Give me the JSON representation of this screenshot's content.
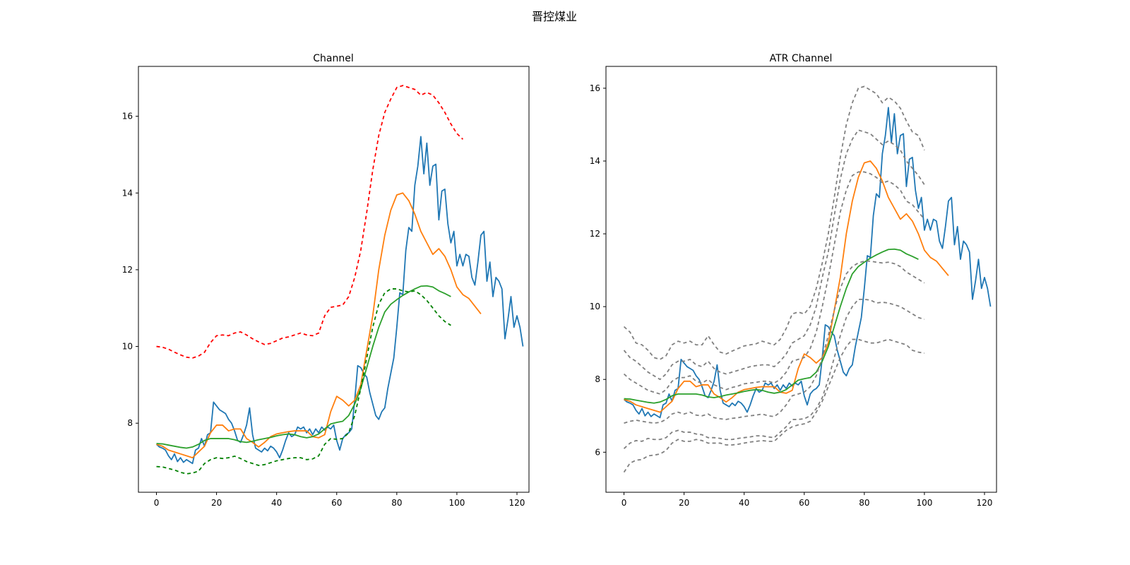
{
  "figure": {
    "suptitle": "晋控煤业"
  },
  "chart_data": [
    {
      "type": "line",
      "title": "Channel",
      "xlabel": "",
      "ylabel": "",
      "xlim": [
        -6,
        124
      ],
      "ylim": [
        6.2,
        17.3
      ],
      "xticks": [
        0,
        20,
        40,
        60,
        80,
        100,
        120
      ],
      "yticks": [
        8,
        10,
        12,
        14,
        16
      ],
      "grid": false,
      "legend": "none",
      "x_step": 2,
      "series": [
        {
          "color": "#1f77b4",
          "dash": "solid",
          "stride": 1,
          "values": [
            7.45,
            7.38,
            7.35,
            7.3,
            7.15,
            7.05,
            7.2,
            7.0,
            7.1,
            6.98,
            7.05,
            7.0,
            6.95,
            7.3,
            7.35,
            7.6,
            7.4,
            7.7,
            7.75,
            8.55,
            8.45,
            8.35,
            8.3,
            8.25,
            8.1,
            8.0,
            7.8,
            7.55,
            7.5,
            7.7,
            7.95,
            8.4,
            7.7,
            7.35,
            7.3,
            7.25,
            7.35,
            7.28,
            7.4,
            7.35,
            7.25,
            7.1,
            7.3,
            7.55,
            7.75,
            7.65,
            7.7,
            7.9,
            7.85,
            7.9,
            7.75,
            7.85,
            7.7,
            7.85,
            7.75,
            7.9,
            7.82,
            7.9,
            7.85,
            7.95,
            7.55,
            7.3,
            7.6,
            7.7,
            7.75,
            7.85,
            8.6,
            9.5,
            9.45,
            9.3,
            9.2,
            8.8,
            8.5,
            8.2,
            8.1,
            8.3,
            8.4,
            8.9,
            9.3,
            9.7,
            10.5,
            11.4,
            11.35,
            12.5,
            13.1,
            13.0,
            14.2,
            14.7,
            15.47,
            14.5,
            15.3,
            14.2,
            14.7,
            14.75,
            13.3,
            14.05,
            14.1,
            13.2,
            12.7,
            13.0,
            12.1,
            12.4,
            12.1,
            12.4,
            12.35,
            11.8,
            11.6,
            12.2,
            12.9,
            13.0,
            11.7,
            12.2,
            11.3,
            11.8,
            11.7,
            11.5,
            10.2,
            10.7,
            11.3,
            10.5,
            10.8,
            10.5,
            10.0
          ]
        },
        {
          "color": "#ff7f0e",
          "dash": "solid",
          "stride": 2,
          "values": [
            7.45,
            7.4,
            7.3,
            7.25,
            7.2,
            7.15,
            7.1,
            7.25,
            7.4,
            7.75,
            7.95,
            7.95,
            7.8,
            7.85,
            7.85,
            7.6,
            7.5,
            7.38,
            7.5,
            7.65,
            7.72,
            7.75,
            7.78,
            7.8,
            7.8,
            7.8,
            7.65,
            7.62,
            7.7,
            8.3,
            8.7,
            8.6,
            8.45,
            8.6,
            9.0,
            9.9,
            10.8,
            12.0,
            12.9,
            13.55,
            13.95,
            14.0,
            13.8,
            13.45,
            13.0,
            12.7,
            12.4,
            12.55,
            12.35,
            12.0,
            11.55,
            11.35,
            11.25,
            11.05,
            10.85
          ]
        },
        {
          "color": "#2ca02c",
          "dash": "solid",
          "stride": 2,
          "values": [
            7.47,
            7.46,
            7.43,
            7.4,
            7.37,
            7.35,
            7.38,
            7.45,
            7.55,
            7.6,
            7.6,
            7.6,
            7.6,
            7.57,
            7.52,
            7.5,
            7.53,
            7.57,
            7.6,
            7.63,
            7.67,
            7.7,
            7.72,
            7.7,
            7.65,
            7.62,
            7.65,
            7.72,
            7.85,
            7.98,
            8.02,
            8.05,
            8.2,
            8.5,
            8.9,
            9.45,
            10.0,
            10.5,
            10.9,
            11.1,
            11.22,
            11.33,
            11.42,
            11.5,
            11.57,
            11.58,
            11.55,
            11.45,
            11.38,
            11.3
          ]
        },
        {
          "color": "#ff0000",
          "dash": "5,4",
          "stride": 2,
          "values": [
            10.0,
            9.98,
            9.93,
            9.85,
            9.78,
            9.72,
            9.7,
            9.75,
            9.85,
            10.1,
            10.28,
            10.3,
            10.28,
            10.35,
            10.38,
            10.3,
            10.2,
            10.12,
            10.05,
            10.08,
            10.15,
            10.22,
            10.25,
            10.3,
            10.35,
            10.3,
            10.28,
            10.35,
            10.8,
            11.02,
            11.05,
            11.08,
            11.3,
            11.8,
            12.5,
            13.5,
            14.6,
            15.5,
            16.1,
            16.45,
            16.75,
            16.8,
            16.75,
            16.7,
            16.55,
            16.62,
            16.55,
            16.35,
            16.1,
            15.8,
            15.55,
            15.4
          ]
        },
        {
          "color": "#008000",
          "dash": "5,4",
          "stride": 2,
          "values": [
            6.87,
            6.86,
            6.82,
            6.78,
            6.72,
            6.68,
            6.7,
            6.75,
            6.95,
            7.05,
            7.1,
            7.08,
            7.1,
            7.14,
            7.08,
            7.0,
            6.95,
            6.9,
            6.92,
            6.97,
            7.02,
            7.05,
            7.08,
            7.1,
            7.1,
            7.05,
            7.07,
            7.15,
            7.45,
            7.6,
            7.58,
            7.6,
            7.75,
            8.2,
            8.9,
            9.7,
            10.5,
            11.1,
            11.4,
            11.5,
            11.5,
            11.45,
            11.42,
            11.45,
            11.35,
            11.2,
            11.0,
            10.8,
            10.65,
            10.55
          ]
        }
      ]
    },
    {
      "type": "line",
      "title": "ATR Channel",
      "xlabel": "",
      "ylabel": "",
      "xlim": [
        -6,
        124
      ],
      "ylim": [
        4.9,
        16.6
      ],
      "xticks": [
        0,
        20,
        40,
        60,
        80,
        100,
        120
      ],
      "yticks": [
        6,
        8,
        10,
        12,
        14,
        16
      ],
      "grid": false,
      "legend": "none",
      "x_step": 2,
      "series": [
        {
          "color": "#1f77b4",
          "dash": "solid",
          "stride": 1,
          "values": [
            7.45,
            7.38,
            7.35,
            7.3,
            7.15,
            7.05,
            7.2,
            7.0,
            7.1,
            6.98,
            7.05,
            7.0,
            6.95,
            7.3,
            7.35,
            7.6,
            7.4,
            7.7,
            7.75,
            8.55,
            8.45,
            8.35,
            8.3,
            8.25,
            8.1,
            8.0,
            7.8,
            7.55,
            7.5,
            7.7,
            7.95,
            8.4,
            7.7,
            7.35,
            7.3,
            7.25,
            7.35,
            7.28,
            7.4,
            7.35,
            7.25,
            7.1,
            7.3,
            7.55,
            7.75,
            7.65,
            7.7,
            7.9,
            7.85,
            7.9,
            7.75,
            7.85,
            7.7,
            7.85,
            7.75,
            7.9,
            7.82,
            7.9,
            7.85,
            7.95,
            7.55,
            7.3,
            7.6,
            7.7,
            7.75,
            7.85,
            8.6,
            9.5,
            9.45,
            9.3,
            9.2,
            8.8,
            8.5,
            8.2,
            8.1,
            8.3,
            8.4,
            8.9,
            9.3,
            9.7,
            10.5,
            11.4,
            11.35,
            12.5,
            13.1,
            13.0,
            14.2,
            14.7,
            15.47,
            14.5,
            15.3,
            14.2,
            14.7,
            14.75,
            13.3,
            14.05,
            14.1,
            13.2,
            12.7,
            13.0,
            12.1,
            12.4,
            12.1,
            12.4,
            12.35,
            11.8,
            11.6,
            12.2,
            12.9,
            13.0,
            11.7,
            12.2,
            11.3,
            11.8,
            11.7,
            11.5,
            10.2,
            10.7,
            11.3,
            10.5,
            10.8,
            10.5,
            10.0
          ]
        },
        {
          "color": "#ff7f0e",
          "dash": "solid",
          "stride": 2,
          "values": [
            7.45,
            7.4,
            7.3,
            7.25,
            7.2,
            7.15,
            7.1,
            7.25,
            7.4,
            7.75,
            7.95,
            7.95,
            7.8,
            7.85,
            7.85,
            7.6,
            7.5,
            7.38,
            7.5,
            7.65,
            7.72,
            7.75,
            7.78,
            7.8,
            7.8,
            7.8,
            7.65,
            7.62,
            7.7,
            8.3,
            8.7,
            8.6,
            8.45,
            8.6,
            9.0,
            9.9,
            10.8,
            12.0,
            12.9,
            13.55,
            13.95,
            14.0,
            13.8,
            13.45,
            13.0,
            12.7,
            12.4,
            12.55,
            12.35,
            12.0,
            11.55,
            11.35,
            11.25,
            11.05,
            10.85
          ]
        },
        {
          "color": "#2ca02c",
          "dash": "solid",
          "stride": 2,
          "values": [
            7.47,
            7.46,
            7.43,
            7.4,
            7.37,
            7.35,
            7.38,
            7.45,
            7.55,
            7.6,
            7.6,
            7.6,
            7.6,
            7.57,
            7.52,
            7.5,
            7.53,
            7.57,
            7.6,
            7.63,
            7.67,
            7.7,
            7.72,
            7.7,
            7.65,
            7.62,
            7.65,
            7.72,
            7.85,
            7.98,
            8.02,
            8.05,
            8.2,
            8.5,
            8.9,
            9.45,
            10.0,
            10.5,
            10.9,
            11.1,
            11.22,
            11.33,
            11.42,
            11.5,
            11.57,
            11.58,
            11.55,
            11.45,
            11.38,
            11.3
          ]
        },
        {
          "color": "#808080",
          "dash": "5,4",
          "stride": 2,
          "values": [
            9.45,
            9.3,
            9.0,
            8.95,
            8.8,
            8.6,
            8.55,
            8.65,
            8.95,
            9.05,
            9.0,
            9.05,
            8.95,
            8.95,
            9.2,
            8.95,
            8.75,
            8.7,
            8.78,
            8.85,
            8.92,
            8.95,
            8.98,
            9.05,
            9.0,
            8.95,
            9.1,
            9.4,
            9.8,
            9.85,
            9.8,
            10.0,
            10.5,
            11.2,
            12.0,
            13.0,
            14.1,
            15.0,
            15.6,
            16.0,
            16.05,
            15.95,
            15.85,
            15.6,
            15.75,
            15.65,
            15.45,
            15.1,
            14.8,
            14.7,
            14.3
          ]
        },
        {
          "color": "#808080",
          "dash": "5,4",
          "stride": 2,
          "values": [
            8.8,
            8.6,
            8.5,
            8.35,
            8.2,
            8.1,
            8.0,
            8.15,
            8.4,
            8.5,
            8.5,
            8.55,
            8.4,
            8.35,
            8.5,
            8.3,
            8.2,
            8.15,
            8.2,
            8.25,
            8.3,
            8.35,
            8.38,
            8.4,
            8.4,
            8.35,
            8.5,
            8.7,
            9.0,
            9.1,
            9.2,
            9.5,
            10.0,
            10.8,
            11.5,
            12.5,
            13.5,
            14.2,
            14.6,
            14.85,
            14.8,
            14.75,
            14.6,
            14.45,
            14.55,
            14.45,
            14.3,
            14.0,
            13.8,
            13.6,
            13.35
          ]
        },
        {
          "color": "#808080",
          "dash": "5,4",
          "stride": 2,
          "values": [
            8.15,
            8.0,
            7.9,
            7.8,
            7.7,
            7.65,
            7.6,
            7.72,
            7.95,
            8.05,
            8.05,
            8.1,
            7.95,
            7.9,
            8.0,
            7.85,
            7.78,
            7.72,
            7.78,
            7.82,
            7.88,
            7.9,
            7.92,
            7.95,
            7.95,
            7.9,
            8.0,
            8.2,
            8.5,
            8.55,
            8.6,
            8.85,
            9.3,
            10.0,
            10.8,
            11.7,
            12.6,
            13.2,
            13.6,
            13.7,
            13.7,
            13.65,
            13.55,
            13.4,
            13.45,
            13.35,
            13.2,
            12.9,
            12.8,
            12.6,
            12.4
          ]
        },
        {
          "color": "#808080",
          "dash": "5,4",
          "stride": 2,
          "values": [
            6.8,
            6.85,
            6.88,
            6.85,
            6.82,
            6.8,
            6.82,
            6.9,
            7.05,
            7.1,
            7.05,
            7.1,
            7.02,
            7.0,
            7.05,
            6.95,
            6.92,
            6.9,
            6.93,
            6.95,
            6.98,
            7.0,
            7.02,
            7.05,
            7.0,
            6.98,
            7.1,
            7.3,
            7.55,
            7.6,
            7.65,
            7.8,
            8.1,
            8.6,
            9.2,
            9.9,
            10.5,
            10.9,
            11.1,
            11.2,
            11.25,
            11.25,
            11.22,
            11.2,
            11.22,
            11.18,
            11.1,
            10.95,
            10.85,
            10.75,
            10.65
          ]
        },
        {
          "color": "#808080",
          "dash": "5,4",
          "stride": 2,
          "values": [
            6.1,
            6.25,
            6.32,
            6.3,
            6.38,
            6.35,
            6.35,
            6.4,
            6.55,
            6.6,
            6.55,
            6.55,
            6.5,
            6.48,
            6.4,
            6.4,
            6.38,
            6.35,
            6.35,
            6.38,
            6.4,
            6.42,
            6.45,
            6.45,
            6.42,
            6.4,
            6.55,
            6.7,
            6.9,
            6.9,
            6.92,
            7.0,
            7.2,
            7.5,
            8.0,
            8.6,
            9.2,
            9.7,
            10.0,
            10.2,
            10.2,
            10.18,
            10.1,
            10.12,
            10.1,
            10.05,
            10.0,
            9.9,
            9.8,
            9.7,
            9.65
          ]
        },
        {
          "color": "#808080",
          "dash": "5,4",
          "stride": 2,
          "values": [
            5.45,
            5.7,
            5.78,
            5.8,
            5.9,
            5.92,
            5.95,
            6.05,
            6.25,
            6.35,
            6.3,
            6.3,
            6.35,
            6.32,
            6.25,
            6.25,
            6.25,
            6.2,
            6.2,
            6.22,
            6.25,
            6.28,
            6.3,
            6.32,
            6.3,
            6.3,
            6.45,
            6.6,
            6.7,
            6.75,
            6.78,
            6.85,
            7.1,
            7.4,
            7.8,
            8.2,
            8.6,
            8.9,
            9.1,
            9.1,
            9.05,
            9.0,
            9.0,
            9.05,
            9.1,
            9.05,
            9.0,
            8.95,
            8.8,
            8.75,
            8.72
          ]
        }
      ]
    }
  ]
}
